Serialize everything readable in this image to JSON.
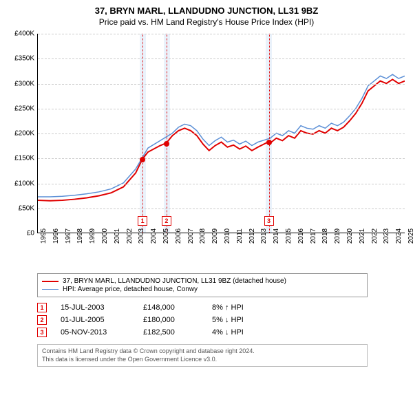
{
  "title_line1": "37, BRYN MARL, LLANDUDNO JUNCTION, LL31 9BZ",
  "title_line2": "Price paid vs. HM Land Registry's House Price Index (HPI)",
  "chart": {
    "type": "line",
    "background_color": "#ffffff",
    "grid_color": "#cccccc",
    "grid_dash": "3,3",
    "axis_color": "#000000",
    "band_color": "#eaf2fb",
    "marker_border_color": "#e00000",
    "marker_text_color": "#e00000",
    "dot_color": "#e00000",
    "ylim": [
      0,
      400000
    ],
    "ytick_step": 50000,
    "yticks": [
      "£0",
      "£50K",
      "£100K",
      "£150K",
      "£200K",
      "£250K",
      "£300K",
      "£350K",
      "£400K"
    ],
    "xlim": [
      1995,
      2025
    ],
    "xtick_step": 1,
    "xticks": [
      "1995",
      "1996",
      "1997",
      "1998",
      "1999",
      "2000",
      "2001",
      "2002",
      "2003",
      "2004",
      "2005",
      "2006",
      "2007",
      "2008",
      "2009",
      "2010",
      "2011",
      "2012",
      "2013",
      "2014",
      "2015",
      "2016",
      "2017",
      "2018",
      "2019",
      "2020",
      "2021",
      "2022",
      "2023",
      "2024",
      "2025"
    ],
    "label_fontsize": 10,
    "bands": [
      {
        "from": 2003.3,
        "to": 2003.8
      },
      {
        "from": 2005.3,
        "to": 2005.8
      },
      {
        "from": 2013.6,
        "to": 2014.1
      }
    ],
    "vlines": [
      2003.55,
      2005.5,
      2013.85
    ],
    "markers": [
      {
        "n": "1",
        "x": 2003.55,
        "y": 148000,
        "box_y": -22
      },
      {
        "n": "2",
        "x": 2005.5,
        "y": 180000,
        "box_y": -22
      },
      {
        "n": "3",
        "x": 2013.85,
        "y": 182500,
        "box_y": -22
      }
    ],
    "series": [
      {
        "name": "price_paid",
        "color": "#e00000",
        "width": 2,
        "points": [
          [
            1995,
            65000
          ],
          [
            1996,
            64000
          ],
          [
            1997,
            65000
          ],
          [
            1998,
            67000
          ],
          [
            1999,
            70000
          ],
          [
            2000,
            74000
          ],
          [
            2001,
            80000
          ],
          [
            2002,
            92000
          ],
          [
            2003,
            120000
          ],
          [
            2003.55,
            148000
          ],
          [
            2004,
            162000
          ],
          [
            2005,
            175000
          ],
          [
            2005.5,
            180000
          ],
          [
            2006,
            195000
          ],
          [
            2006.5,
            205000
          ],
          [
            2007,
            210000
          ],
          [
            2007.5,
            205000
          ],
          [
            2008,
            195000
          ],
          [
            2008.5,
            178000
          ],
          [
            2009,
            165000
          ],
          [
            2009.5,
            175000
          ],
          [
            2010,
            182000
          ],
          [
            2010.5,
            172000
          ],
          [
            2011,
            176000
          ],
          [
            2011.5,
            168000
          ],
          [
            2012,
            174000
          ],
          [
            2012.5,
            165000
          ],
          [
            2013,
            172000
          ],
          [
            2013.85,
            182500
          ],
          [
            2014,
            180000
          ],
          [
            2014.5,
            190000
          ],
          [
            2015,
            185000
          ],
          [
            2015.5,
            195000
          ],
          [
            2016,
            190000
          ],
          [
            2016.5,
            205000
          ],
          [
            2017,
            200000
          ],
          [
            2017.5,
            198000
          ],
          [
            2018,
            205000
          ],
          [
            2018.5,
            200000
          ],
          [
            2019,
            210000
          ],
          [
            2019.5,
            205000
          ],
          [
            2020,
            212000
          ],
          [
            2020.5,
            225000
          ],
          [
            2021,
            240000
          ],
          [
            2021.5,
            260000
          ],
          [
            2022,
            285000
          ],
          [
            2022.5,
            295000
          ],
          [
            2023,
            305000
          ],
          [
            2023.5,
            300000
          ],
          [
            2024,
            308000
          ],
          [
            2024.5,
            300000
          ],
          [
            2025,
            305000
          ]
        ]
      },
      {
        "name": "hpi",
        "color": "#5b8fd6",
        "width": 1.5,
        "points": [
          [
            1995,
            72000
          ],
          [
            1996,
            72000
          ],
          [
            1997,
            73000
          ],
          [
            1998,
            75000
          ],
          [
            1999,
            78000
          ],
          [
            2000,
            82000
          ],
          [
            2001,
            88000
          ],
          [
            2002,
            100000
          ],
          [
            2003,
            128000
          ],
          [
            2004,
            170000
          ],
          [
            2005,
            185000
          ],
          [
            2006,
            200000
          ],
          [
            2006.5,
            212000
          ],
          [
            2007,
            218000
          ],
          [
            2007.5,
            215000
          ],
          [
            2008,
            205000
          ],
          [
            2008.5,
            188000
          ],
          [
            2009,
            175000
          ],
          [
            2009.5,
            185000
          ],
          [
            2010,
            192000
          ],
          [
            2010.5,
            182000
          ],
          [
            2011,
            186000
          ],
          [
            2011.5,
            178000
          ],
          [
            2012,
            184000
          ],
          [
            2012.5,
            175000
          ],
          [
            2013,
            182000
          ],
          [
            2014,
            190000
          ],
          [
            2014.5,
            200000
          ],
          [
            2015,
            195000
          ],
          [
            2015.5,
            205000
          ],
          [
            2016,
            200000
          ],
          [
            2016.5,
            215000
          ],
          [
            2017,
            210000
          ],
          [
            2017.5,
            208000
          ],
          [
            2018,
            215000
          ],
          [
            2018.5,
            210000
          ],
          [
            2019,
            220000
          ],
          [
            2019.5,
            215000
          ],
          [
            2020,
            222000
          ],
          [
            2020.5,
            235000
          ],
          [
            2021,
            250000
          ],
          [
            2021.5,
            270000
          ],
          [
            2022,
            295000
          ],
          [
            2022.5,
            305000
          ],
          [
            2023,
            315000
          ],
          [
            2023.5,
            310000
          ],
          [
            2024,
            318000
          ],
          [
            2024.5,
            310000
          ],
          [
            2025,
            315000
          ]
        ]
      }
    ]
  },
  "legend": {
    "items": [
      {
        "color": "#e00000",
        "width": 2,
        "label": "37, BRYN MARL, LLANDUDNO JUNCTION, LL31 9BZ (detached house)"
      },
      {
        "color": "#5b8fd6",
        "width": 1.5,
        "label": "HPI: Average price, detached house, Conwy"
      }
    ]
  },
  "events": [
    {
      "n": "1",
      "date": "15-JUL-2003",
      "price": "£148,000",
      "hpi": "8% ↑ HPI"
    },
    {
      "n": "2",
      "date": "01-JUL-2005",
      "price": "£180,000",
      "hpi": "5% ↓ HPI"
    },
    {
      "n": "3",
      "date": "05-NOV-2013",
      "price": "£182,500",
      "hpi": "4% ↓ HPI"
    }
  ],
  "footer_line1": "Contains HM Land Registry data © Crown copyright and database right 2024.",
  "footer_line2": "This data is licensed under the Open Government Licence v3.0."
}
